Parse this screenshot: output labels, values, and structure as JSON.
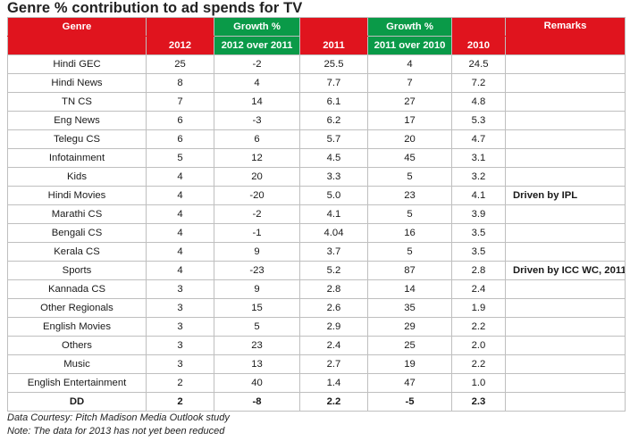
{
  "title": "Genre % contribution to ad spends for TV",
  "columns": {
    "genre": "Genre",
    "y2012": "2012",
    "growth1_top": "Growth %",
    "growth1_bottom": "2012 over 2011",
    "y2011": "2011",
    "growth2_top": "Growth %",
    "growth2_bottom": "2011 over 2010",
    "y2010": "2010",
    "remarks": "Remarks"
  },
  "colors": {
    "header_red": "#e0141e",
    "header_green": "#0a9a48"
  },
  "rows": [
    [
      "Hindi GEC",
      "25",
      "-2",
      "25.5",
      "4",
      "24.5",
      ""
    ],
    [
      "Hindi News",
      "8",
      "4",
      "7.7",
      "7",
      "7.2",
      ""
    ],
    [
      "TN CS",
      "7",
      "14",
      "6.1",
      "27",
      "4.8",
      ""
    ],
    [
      "Eng News",
      "6",
      "-3",
      "6.2",
      "17",
      "5.3",
      ""
    ],
    [
      "Telegu CS",
      "6",
      "6",
      "5.7",
      "20",
      "4.7",
      ""
    ],
    [
      "Infotainment",
      "5",
      "12",
      "4.5",
      "45",
      "3.1",
      ""
    ],
    [
      "Kids",
      "4",
      "20",
      "3.3",
      "5",
      "3.2",
      ""
    ],
    [
      "Hindi Movies",
      "4",
      "-20",
      "5.0",
      "23",
      "4.1",
      "Driven by IPL"
    ],
    [
      "Marathi CS",
      "4",
      "-2",
      "4.1",
      "5",
      "3.9",
      ""
    ],
    [
      "Bengali CS",
      "4",
      "-1",
      "4.04",
      "16",
      "3.5",
      ""
    ],
    [
      "Kerala CS",
      "4",
      "9",
      "3.7",
      "5",
      "3.5",
      ""
    ],
    [
      "Sports",
      "4",
      "-23",
      "5.2",
      "87",
      "2.8",
      "Driven by ICC WC, 2011"
    ],
    [
      "Kannada CS",
      "3",
      "9",
      "2.8",
      "14",
      "2.4",
      ""
    ],
    [
      "Other Regionals",
      "3",
      "15",
      "2.6",
      "35",
      "1.9",
      ""
    ],
    [
      "English Movies",
      "3",
      "5",
      "2.9",
      "29",
      "2.2",
      ""
    ],
    [
      "Others",
      "3",
      "23",
      "2.4",
      "25",
      "2.0",
      ""
    ],
    [
      "Music",
      "3",
      "13",
      "2.7",
      "19",
      "2.2",
      ""
    ],
    [
      "English Entertainment",
      "2",
      "40",
      "1.4",
      "47",
      "1.0",
      ""
    ]
  ],
  "total_row": [
    "DD",
    "2",
    "-8",
    "2.2",
    "-5",
    "2.3",
    ""
  ],
  "notes": {
    "courtesy": "Data Courtesy: Pitch Madison Media Outlook study",
    "note": "Note: The data for 2013 has not yet been reduced"
  }
}
